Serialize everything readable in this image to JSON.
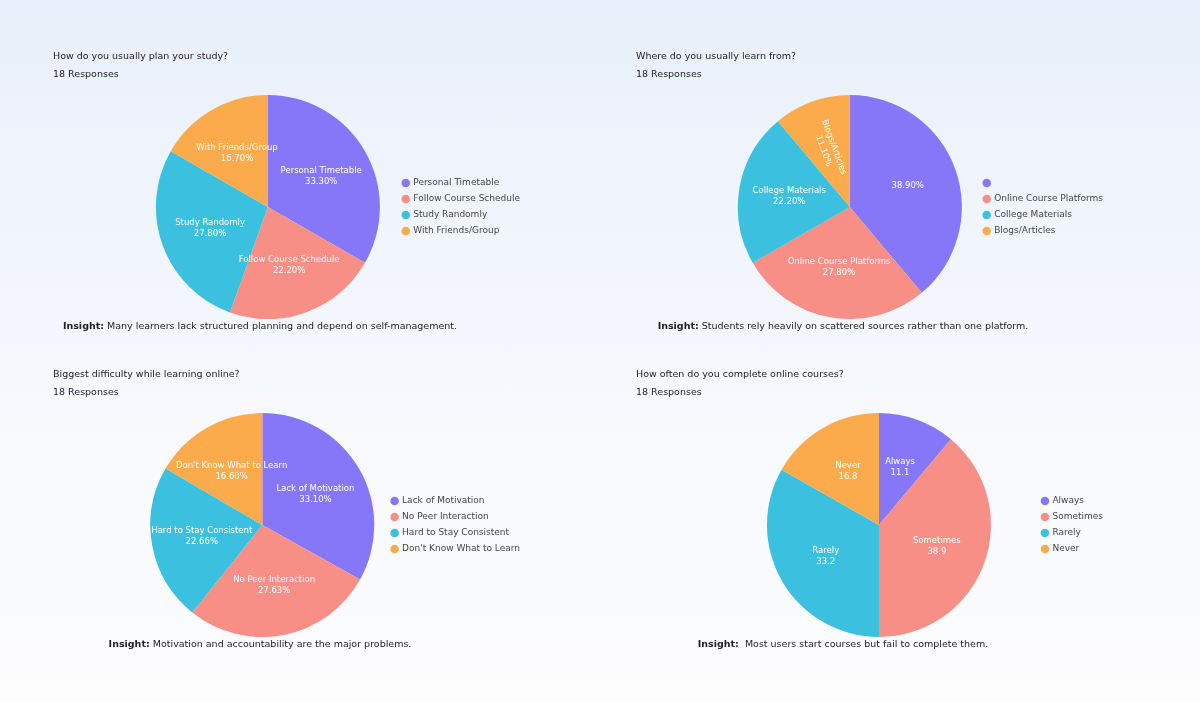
{
  "chart_data": [
    {
      "type": "pie",
      "title": "How do you usually plan your study?",
      "subtitle": "18 Responses",
      "categories": [
        "Personal Timetable",
        "Follow Course Schedule",
        "Study Randomly",
        "With Friends/Group"
      ],
      "values": [
        33.3,
        22.2,
        27.8,
        16.7
      ],
      "value_labels": [
        "33.30%",
        "22.20%",
        "27.80%",
        "16.70%"
      ],
      "colors": [
        "#8677f8",
        "#f88f87",
        "#3bc1df",
        "#fbab4b"
      ],
      "legend": "right",
      "annotations": [
        "Insight: Many learners lack structured planning and depend on self-management."
      ]
    },
    {
      "type": "pie",
      "title": "Where do you usually learn from?",
      "subtitle": "18 Responses",
      "categories": [
        null,
        "Online Course Platforms",
        "College Materials",
        "Blogs/Articles"
      ],
      "values": [
        38.9,
        27.8,
        22.2,
        11.1
      ],
      "value_labels": [
        "38.90%",
        "27.80%",
        "22.20%",
        "11.10%"
      ],
      "colors": [
        "#8677f8",
        "#f88f87",
        "#3bc1df",
        "#fbab4b"
      ],
      "legend": "right",
      "annotations": [
        "Insight: Students rely heavily on scattered sources rather than one platform."
      ]
    },
    {
      "type": "pie",
      "title": "Biggest difficulty while learning online?",
      "subtitle": "18 Responses",
      "categories": [
        "Lack of Motivation",
        "No Peer Interaction",
        "Hard to Stay Consistent",
        "Don't Know What to Learn"
      ],
      "values": [
        33.1,
        27.63,
        22.66,
        16.6
      ],
      "value_labels": [
        "33.10%",
        "27.63%",
        "22.66%",
        "16.60%"
      ],
      "colors": [
        "#8677f8",
        "#f88f87",
        "#3bc1df",
        "#fbab4b"
      ],
      "legend": "right",
      "annotations": [
        "Insight: Motivation and accountability are the major problems."
      ]
    },
    {
      "type": "pie",
      "title": "How often do you complete online courses?",
      "subtitle": "18 Responses",
      "categories": [
        "Always",
        "Sometimes",
        "Rarely",
        "Never"
      ],
      "values": [
        11.1,
        38.9,
        33.2,
        16.8
      ],
      "value_labels": [
        "11.1",
        "38.9",
        "33.2",
        "16.8"
      ],
      "colors": [
        "#8677f8",
        "#f88f87",
        "#3bc1df",
        "#fbab4b"
      ],
      "legend": "right",
      "annotations": [
        "Insight:  Most users start courses but fail to complete them."
      ]
    }
  ]
}
